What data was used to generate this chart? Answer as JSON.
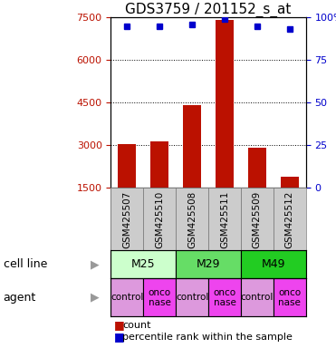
{
  "title": "GDS3759 / 201152_s_at",
  "samples": [
    "GSM425507",
    "GSM425510",
    "GSM425508",
    "GSM425511",
    "GSM425509",
    "GSM425512"
  ],
  "counts": [
    3050,
    3150,
    4400,
    7400,
    2900,
    1900
  ],
  "percentile_ranks": [
    95,
    95,
    96,
    99,
    95,
    93
  ],
  "ylim_left": [
    1500,
    7500
  ],
  "yticks_left": [
    1500,
    3000,
    4500,
    6000,
    7500
  ],
  "ylim_right": [
    0,
    100
  ],
  "yticks_right": [
    0,
    25,
    50,
    75,
    100
  ],
  "ytick_right_labels": [
    "0",
    "25",
    "50",
    "75",
    "100%"
  ],
  "bar_color": "#BB1100",
  "dot_color": "#0000CC",
  "bar_width": 0.55,
  "cell_lines": [
    {
      "label": "M25",
      "color": "#CCFFCC",
      "span": [
        0,
        2
      ]
    },
    {
      "label": "M29",
      "color": "#66DD66",
      "span": [
        2,
        4
      ]
    },
    {
      "label": "M49",
      "color": "#22CC22",
      "span": [
        4,
        6
      ]
    }
  ],
  "agents": [
    {
      "label": "control",
      "color": "#DD99DD",
      "col": 0
    },
    {
      "label": "onconase",
      "color": "#EE44EE",
      "col": 1
    },
    {
      "label": "control",
      "color": "#DD99DD",
      "col": 2
    },
    {
      "label": "onconase",
      "color": "#EE44EE",
      "col": 3
    },
    {
      "label": "control",
      "color": "#DD99DD",
      "col": 4
    },
    {
      "label": "onconase",
      "color": "#EE44EE",
      "col": 5
    }
  ],
  "legend_count_color": "#BB1100",
  "legend_dot_color": "#0000CC",
  "xlabel_cell_line": "cell line",
  "xlabel_agent": "agent",
  "background_color": "#FFFFFF",
  "title_fontsize": 11,
  "tick_fontsize": 8,
  "label_fontsize": 9,
  "sample_fontsize": 7.5
}
